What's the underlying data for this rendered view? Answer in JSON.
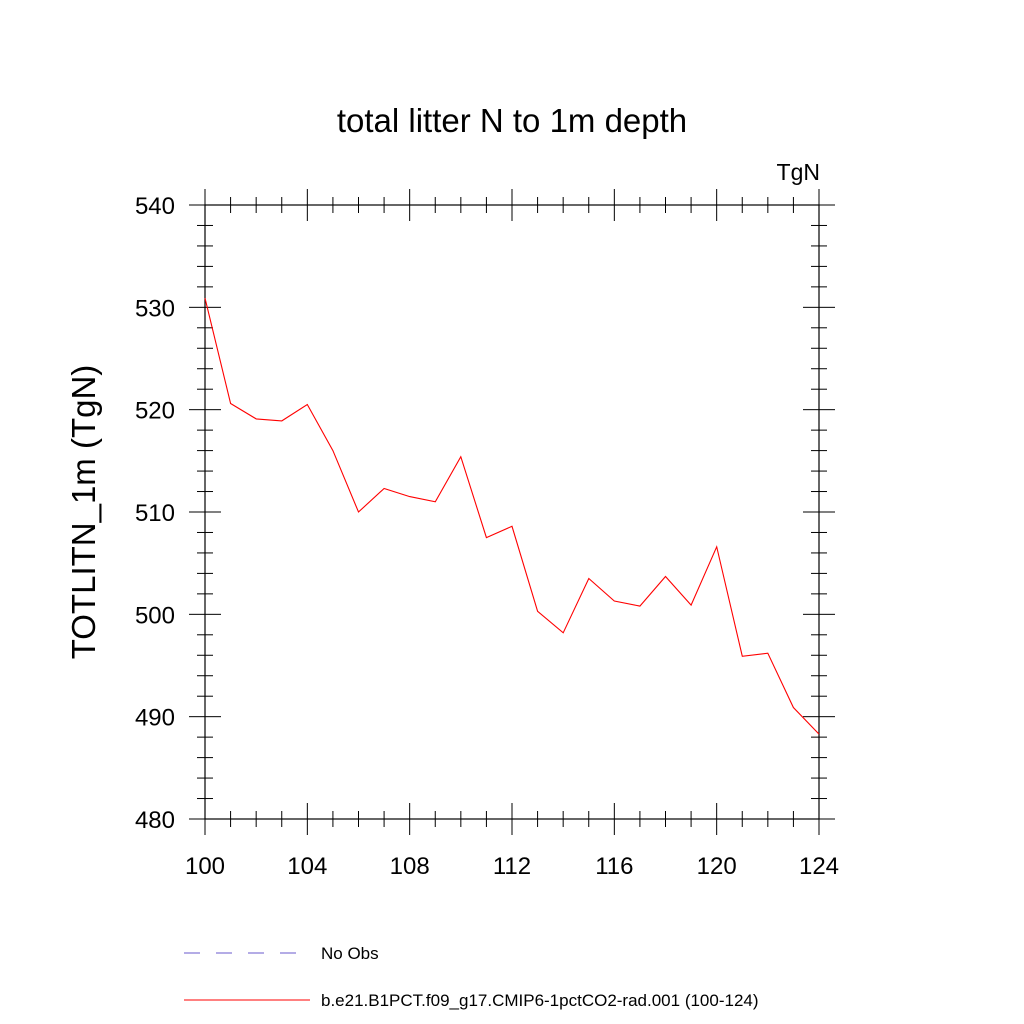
{
  "chart_data": {
    "type": "line",
    "title": "total litter N to 1m depth",
    "units": "TgN",
    "xlabel": "",
    "ylabel": "TOTLITN_1m  (TgN)",
    "xlim": [
      100,
      124
    ],
    "ylim": [
      480,
      540
    ],
    "x_ticks": [
      100,
      104,
      108,
      112,
      116,
      120,
      124
    ],
    "y_ticks": [
      480,
      490,
      500,
      510,
      520,
      530,
      540
    ],
    "x_tick_labels": [
      "100",
      "104",
      "108",
      "112",
      "116",
      "120",
      "124"
    ],
    "y_tick_labels": [
      "480",
      "490",
      "500",
      "510",
      "520",
      "530",
      "540"
    ],
    "grid": false,
    "legend_position": "bottom",
    "series": [
      {
        "name": "b.e21.B1PCT.f09_g17.CMIP6-1pctCO2-rad.001 (100-124)",
        "color": "#ff0000",
        "style": "solid",
        "x": [
          100,
          101,
          102,
          103,
          104,
          105,
          106,
          107,
          108,
          109,
          110,
          111,
          112,
          113,
          114,
          115,
          116,
          117,
          118,
          119,
          120,
          121,
          122,
          123,
          124
        ],
        "values": [
          530.9,
          520.6,
          519.1,
          518.9,
          520.5,
          516.0,
          510.0,
          512.3,
          511.5,
          511.0,
          515.4,
          507.5,
          508.6,
          500.3,
          498.2,
          503.5,
          501.3,
          500.8,
          503.7,
          500.9,
          506.6,
          495.9,
          496.2,
          490.9,
          488.3
        ]
      }
    ],
    "legend": [
      {
        "label": "No Obs",
        "color": "#6a5acd",
        "style": "dashed"
      },
      {
        "label": "b.e21.B1PCT.f09_g17.CMIP6-1pctCO2-rad.001 (100-124)",
        "color": "#ff0000",
        "style": "solid"
      }
    ]
  }
}
